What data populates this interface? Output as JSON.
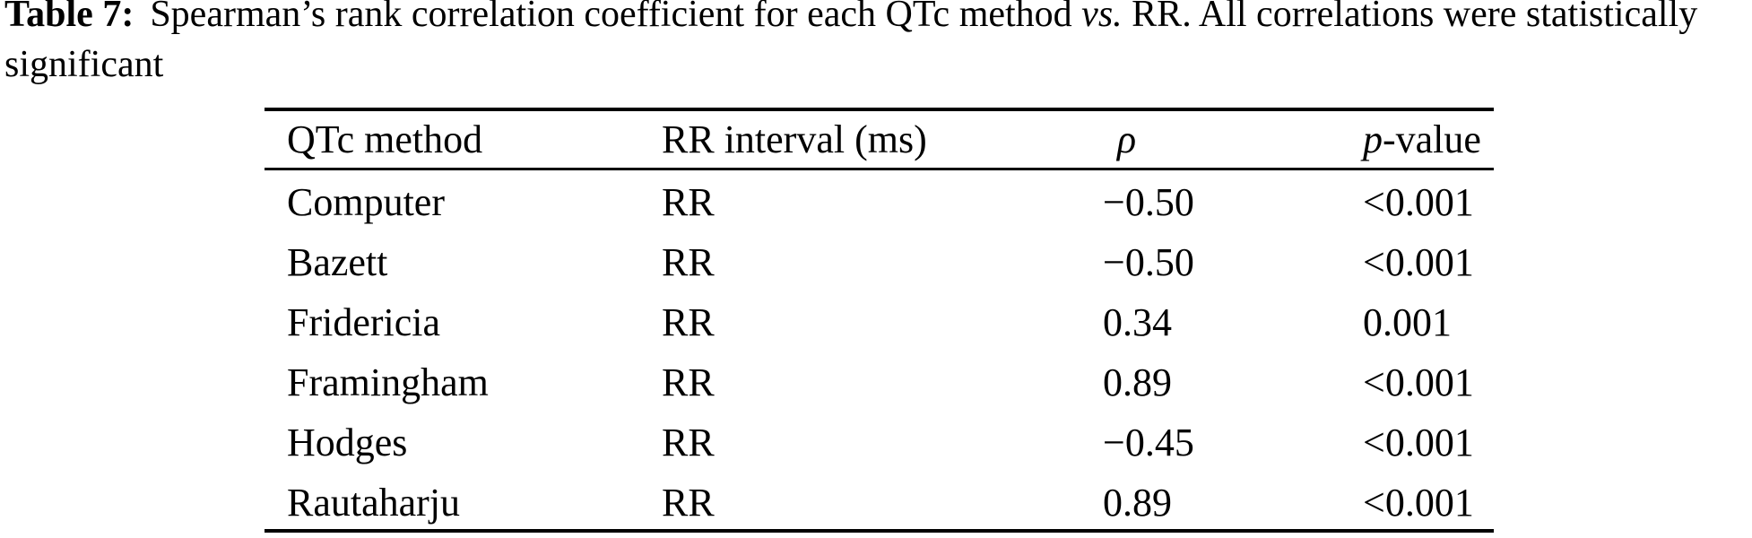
{
  "caption": {
    "label": "Table 7:",
    "text_before_vs": "Spearman’s rank correlation coefficient for each QTc method ",
    "vs": "vs.",
    "text_after_vs": " RR. All correlations were statistically",
    "line2": "significant"
  },
  "table": {
    "headers": {
      "method": "QTc method",
      "rr": "RR interval (ms)",
      "rho": "ρ",
      "p_italic": "p",
      "p_rest": "-value"
    },
    "rows": [
      {
        "method": "Computer",
        "rr": "RR",
        "rho": "−0.50",
        "p": "<0.001"
      },
      {
        "method": "Bazett",
        "rr": "RR",
        "rho": "−0.50",
        "p": "<0.001"
      },
      {
        "method": "Fridericia",
        "rr": "RR",
        "rho": "0.34",
        "p": "0.001"
      },
      {
        "method": "Framingham",
        "rr": "RR",
        "rho": "0.89",
        "p": "<0.001"
      },
      {
        "method": "Hodges",
        "rr": "RR",
        "rho": "−0.45",
        "p": "<0.001"
      },
      {
        "method": "Rautaharju",
        "rr": "RR",
        "rho": "0.89",
        "p": "<0.001"
      }
    ]
  },
  "colors": {
    "text": "#000000",
    "background": "#ffffff",
    "rule": "#000000"
  }
}
